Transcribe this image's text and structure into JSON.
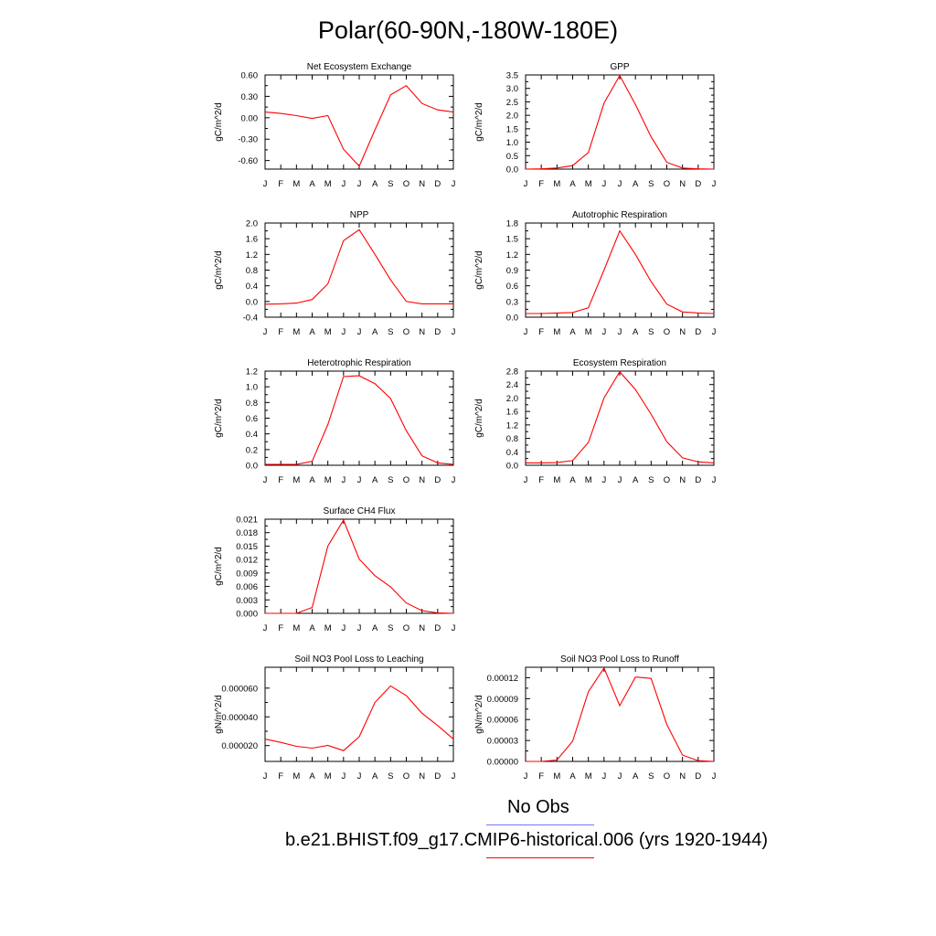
{
  "page": {
    "title": "Polar(60-90N,-180W-180E)"
  },
  "legend": {
    "obs_label": "No Obs",
    "obs_color": "#7777ee",
    "model_label": "b.e21.BHIST.f09_g17.CMIP6-historical.006 (yrs 1920-1944)",
    "model_color": "#ff0000"
  },
  "line_color": "#ff0000",
  "chart_data": [
    {
      "type": "line",
      "title": "Net Ecosystem Exchange",
      "ylabel": "gC/m^2/d",
      "categories": [
        "J",
        "F",
        "M",
        "A",
        "M",
        "J",
        "J",
        "A",
        "S",
        "O",
        "N",
        "D",
        "J"
      ],
      "ylim": [
        -0.72,
        0.6
      ],
      "yticks": [
        "0.60",
        "0.30",
        "0.00",
        "-0.30",
        "-0.60"
      ],
      "yticks_v": [
        0.6,
        0.3,
        0.0,
        -0.3,
        -0.6
      ],
      "values": [
        0.08,
        0.06,
        0.03,
        -0.01,
        0.03,
        -0.44,
        -0.68,
        -0.17,
        0.32,
        0.45,
        0.2,
        0.11,
        0.08
      ]
    },
    {
      "type": "line",
      "title": "GPP",
      "ylabel": "gC/m^2/d",
      "categories": [
        "J",
        "F",
        "M",
        "A",
        "M",
        "J",
        "J",
        "A",
        "S",
        "O",
        "N",
        "D",
        "J"
      ],
      "ylim": [
        0,
        3.5
      ],
      "yticks": [
        "3.5",
        "3.0",
        "2.5",
        "2.0",
        "1.5",
        "1.0",
        "0.5",
        "0.0"
      ],
      "yticks_v": [
        3.5,
        3.0,
        2.5,
        2.0,
        1.5,
        1.0,
        0.5,
        0.0
      ],
      "values": [
        0.0,
        0.01,
        0.04,
        0.13,
        0.62,
        2.45,
        3.48,
        2.4,
        1.2,
        0.25,
        0.04,
        0.01,
        0.0
      ]
    },
    {
      "type": "line",
      "title": "NPP",
      "ylabel": "gC/m^2/d",
      "categories": [
        "J",
        "F",
        "M",
        "A",
        "M",
        "J",
        "J",
        "A",
        "S",
        "O",
        "N",
        "D",
        "J"
      ],
      "ylim": [
        -0.4,
        2.0
      ],
      "yticks": [
        "2.0",
        "1.6",
        "1.2",
        "0.8",
        "0.4",
        "0.0",
        "-0.4"
      ],
      "yticks_v": [
        2.0,
        1.6,
        1.2,
        0.8,
        0.4,
        0.0,
        -0.4
      ],
      "values": [
        -0.07,
        -0.06,
        -0.04,
        0.05,
        0.45,
        1.55,
        1.83,
        1.2,
        0.55,
        0.0,
        -0.06,
        -0.06,
        -0.06
      ]
    },
    {
      "type": "line",
      "title": "Autotrophic Respiration",
      "ylabel": "gC/m^2/d",
      "categories": [
        "J",
        "F",
        "M",
        "A",
        "M",
        "J",
        "J",
        "A",
        "S",
        "O",
        "N",
        "D",
        "J"
      ],
      "ylim": [
        0,
        1.8
      ],
      "yticks": [
        "1.8",
        "1.5",
        "1.2",
        "0.9",
        "0.6",
        "0.3",
        "0.0"
      ],
      "yticks_v": [
        1.8,
        1.5,
        1.2,
        0.9,
        0.6,
        0.3,
        0.0
      ],
      "values": [
        0.07,
        0.07,
        0.08,
        0.09,
        0.18,
        0.9,
        1.65,
        1.2,
        0.68,
        0.25,
        0.1,
        0.08,
        0.07
      ]
    },
    {
      "type": "line",
      "title": "Heterotrophic Respiration",
      "ylabel": "gC/m^2/d",
      "categories": [
        "J",
        "F",
        "M",
        "A",
        "M",
        "J",
        "J",
        "A",
        "S",
        "O",
        "N",
        "D",
        "J"
      ],
      "ylim": [
        0,
        1.2
      ],
      "yticks": [
        "1.2",
        "1.0",
        "0.8",
        "0.6",
        "0.4",
        "0.2",
        "0.0"
      ],
      "yticks_v": [
        1.2,
        1.0,
        0.8,
        0.6,
        0.4,
        0.2,
        0.0
      ],
      "values": [
        0.01,
        0.01,
        0.01,
        0.05,
        0.52,
        1.13,
        1.14,
        1.04,
        0.85,
        0.44,
        0.12,
        0.03,
        0.01
      ]
    },
    {
      "type": "line",
      "title": "Ecosystem Respiration",
      "ylabel": "gC/m^2/d",
      "categories": [
        "J",
        "F",
        "M",
        "A",
        "M",
        "J",
        "J",
        "A",
        "S",
        "O",
        "N",
        "D",
        "J"
      ],
      "ylim": [
        0,
        2.8
      ],
      "yticks": [
        "2.8",
        "2.4",
        "2.0",
        "1.6",
        "1.2",
        "0.8",
        "0.4",
        "0.0"
      ],
      "yticks_v": [
        2.8,
        2.4,
        2.0,
        1.6,
        1.2,
        0.8,
        0.4,
        0.0
      ],
      "values": [
        0.07,
        0.07,
        0.08,
        0.14,
        0.68,
        2.0,
        2.78,
        2.25,
        1.52,
        0.7,
        0.22,
        0.1,
        0.07
      ]
    },
    {
      "type": "line",
      "title": "Surface CH4 Flux",
      "ylabel": "gC/m^2/d",
      "categories": [
        "J",
        "F",
        "M",
        "A",
        "M",
        "J",
        "J",
        "A",
        "S",
        "O",
        "N",
        "D",
        "J"
      ],
      "ylim": [
        0,
        0.021
      ],
      "yticks": [
        "0.021",
        "0.018",
        "0.015",
        "0.012",
        "0.009",
        "0.006",
        "0.003",
        "0.000"
      ],
      "yticks_v": [
        0.021,
        0.018,
        0.015,
        0.012,
        0.009,
        0.006,
        0.003,
        0.0
      ],
      "values": [
        0.0,
        0.0,
        0.0,
        0.0013,
        0.015,
        0.0208,
        0.0121,
        0.0084,
        0.0059,
        0.0023,
        0.0006,
        0.0001,
        0.0
      ]
    },
    {
      "type": "line",
      "title": "Soil NO3 Pool Loss to Leaching",
      "ylabel": "gN/m^2/d",
      "categories": [
        "J",
        "F",
        "M",
        "A",
        "M",
        "J",
        "J",
        "A",
        "S",
        "O",
        "N",
        "D",
        "J"
      ],
      "ylim": [
        9e-06,
        7.45e-05
      ],
      "yticks": [
        "0.000060",
        "0.000040",
        "0.000020"
      ],
      "yticks_v": [
        6e-05,
        4e-05,
        2e-05
      ],
      "values": [
        2.45e-05,
        2.22e-05,
        1.95e-05,
        1.82e-05,
        2.01e-05,
        1.65e-05,
        2.62e-05,
        5e-05,
        6.15e-05,
        5.48e-05,
        4.25e-05,
        3.4e-05,
        2.45e-05
      ]
    },
    {
      "type": "line",
      "title": "Soil NO3 Pool Loss to Runoff",
      "ylabel": "gN/m^2/d",
      "categories": [
        "J",
        "F",
        "M",
        "A",
        "M",
        "J",
        "J",
        "A",
        "S",
        "O",
        "N",
        "D",
        "J"
      ],
      "ylim": [
        0,
        0.000135
      ],
      "yticks": [
        "0.00012",
        "0.00009",
        "0.00006",
        "0.00003",
        "0.00000"
      ],
      "yticks_v": [
        0.00012,
        9e-05,
        6e-05,
        3e-05,
        0.0
      ],
      "values": [
        0.0,
        0.0,
        2e-06,
        2.9e-05,
        0.0001,
        0.000134,
        8e-05,
        0.000121,
        0.000119,
        5.3e-05,
        9e-06,
        1e-06,
        0.0
      ]
    }
  ]
}
